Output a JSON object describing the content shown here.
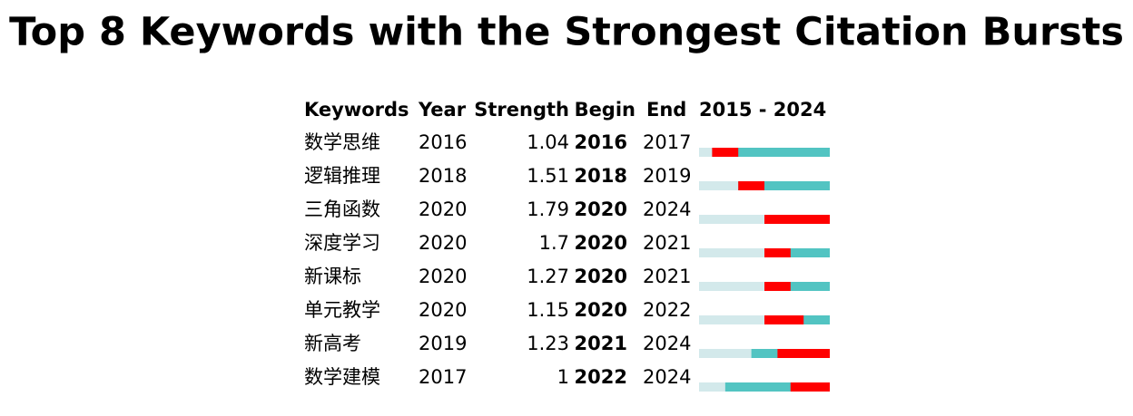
{
  "title": "Top 8 Keywords with the Strongest Citation Bursts",
  "table": {
    "columns": [
      "Keywords",
      "Year",
      "Strength",
      "Begin",
      "End"
    ],
    "timeline": {
      "start": 2015,
      "end": 2024
    },
    "rows": [
      [
        "数学思维",
        2016,
        1.04,
        2016,
        2017
      ],
      [
        "逻辑推理",
        2018,
        1.51,
        2018,
        2019
      ],
      [
        "三角函数",
        2020,
        1.79,
        2020,
        2024
      ],
      [
        "深度学习",
        2020,
        1.7,
        2020,
        2021
      ],
      [
        "新课标",
        2020,
        1.27,
        2020,
        2021
      ],
      [
        "单元教学",
        2020,
        1.15,
        2020,
        2022
      ],
      [
        "新高考",
        2019,
        1.23,
        2021,
        2024
      ],
      [
        "数学建模",
        2017,
        1,
        2022,
        2024
      ]
    ],
    "colors": {
      "before": "#d3e9eb",
      "active": "#52c4c2",
      "burst": "#ff0000"
    }
  }
}
